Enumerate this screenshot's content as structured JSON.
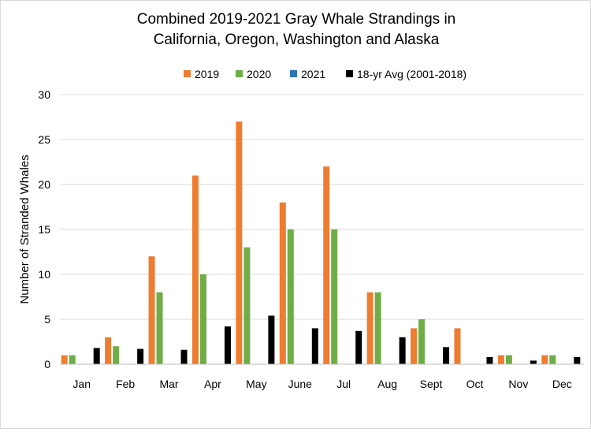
{
  "chart_data": {
    "type": "bar",
    "title_lines": [
      "Combined 2019-2021 Gray Whale Strandings in",
      "California, Oregon, Washington and Alaska"
    ],
    "xlabel": "",
    "ylabel": "Number of Stranded Whales",
    "ylim": [
      0,
      30
    ],
    "yticks": [
      "0",
      "5",
      "10",
      "15",
      "20",
      "25",
      "30"
    ],
    "grid": true,
    "legend_position": "top",
    "categories": [
      "Jan",
      "Feb",
      "Mar",
      "Apr",
      "May",
      "June",
      "Jul",
      "Aug",
      "Sept",
      "Oct",
      "Nov",
      "Dec"
    ],
    "series": [
      {
        "name": "2019",
        "color": "#ed7d31",
        "values": [
          1,
          3,
          12,
          21,
          27,
          18,
          22,
          8,
          4,
          4,
          1,
          1
        ]
      },
      {
        "name": "2020",
        "color": "#70ad47",
        "values": [
          1,
          2,
          8,
          10,
          13,
          15,
          15,
          8,
          5,
          0,
          1,
          1
        ]
      },
      {
        "name": "2021",
        "color": "#2e75b6",
        "values": [
          0,
          0,
          0,
          0,
          0,
          0,
          0,
          0,
          0,
          0,
          0,
          0
        ]
      },
      {
        "name": "18-yr Avg (2001-2018)",
        "color": "#000000",
        "values": [
          1.8,
          1.7,
          1.6,
          4.2,
          5.4,
          4.0,
          3.7,
          3.0,
          1.9,
          0.8,
          0.4,
          0.8
        ]
      }
    ]
  }
}
